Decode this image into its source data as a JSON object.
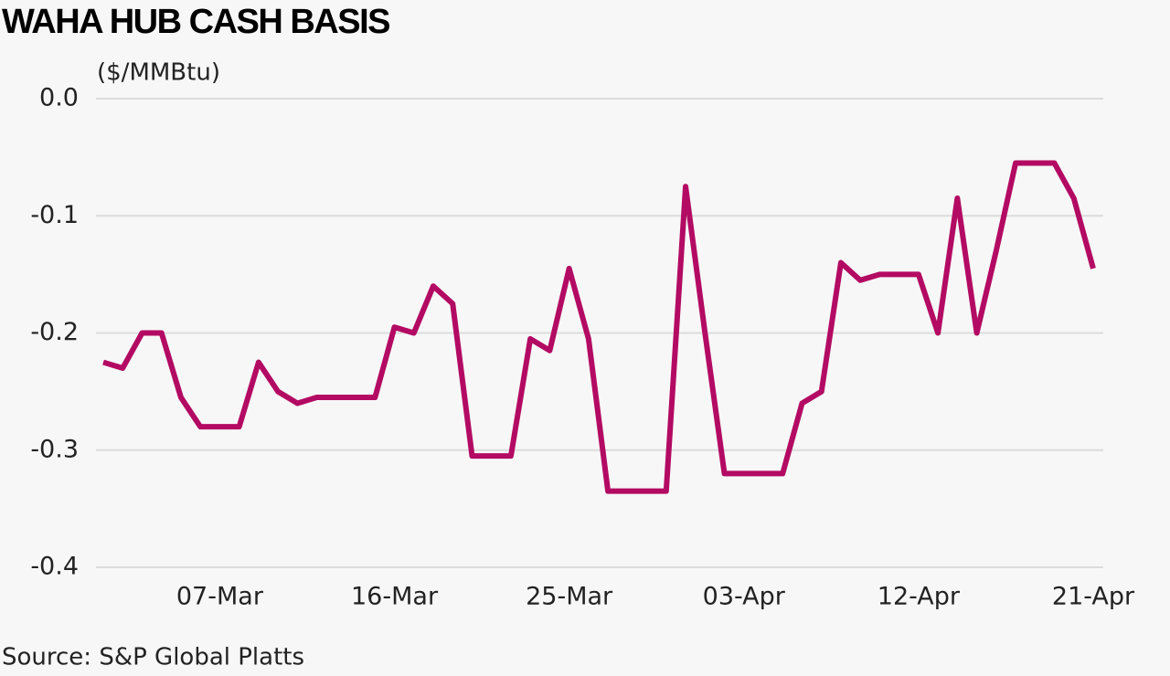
{
  "chart_data": {
    "type": "line",
    "title": "WAHA HUB CASH BASIS",
    "y_label": "($/MMBtu)",
    "source": "Source: S&P Global Platts",
    "categories": [
      null,
      null,
      null,
      null,
      null,
      null,
      "07-Mar",
      null,
      null,
      null,
      null,
      null,
      null,
      null,
      null,
      "16-Mar",
      null,
      null,
      null,
      null,
      null,
      null,
      null,
      null,
      "25-Mar",
      null,
      null,
      null,
      null,
      null,
      null,
      null,
      null,
      "03-Apr",
      null,
      null,
      null,
      null,
      null,
      null,
      null,
      null,
      "12-Apr",
      null,
      null,
      null,
      null,
      null,
      null,
      null,
      null,
      "21-Apr"
    ],
    "series": [
      {
        "name": "Waha",
        "color": "#b30a63",
        "values": [
          -0.225,
          -0.23,
          -0.2,
          -0.2,
          -0.255,
          -0.28,
          -0.28,
          -0.28,
          -0.225,
          -0.25,
          -0.26,
          -0.255,
          -0.255,
          -0.255,
          -0.255,
          -0.195,
          -0.2,
          -0.16,
          -0.175,
          -0.305,
          -0.305,
          -0.305,
          -0.205,
          -0.215,
          -0.145,
          -0.205,
          -0.335,
          -0.335,
          -0.335,
          -0.335,
          -0.075,
          -0.2,
          -0.32,
          -0.32,
          -0.32,
          -0.32,
          -0.26,
          -0.25,
          -0.14,
          -0.155,
          -0.15,
          -0.15,
          -0.15,
          -0.2,
          -0.085,
          -0.2,
          -0.13,
          -0.055,
          -0.055,
          -0.055,
          -0.085,
          -0.145
        ]
      }
    ],
    "ylim": [
      -0.4,
      0
    ],
    "yticks": [
      {
        "value": 0,
        "label": "0.0"
      },
      -0.1,
      -0.2,
      -0.3,
      -0.4
    ],
    "grid": true
  }
}
